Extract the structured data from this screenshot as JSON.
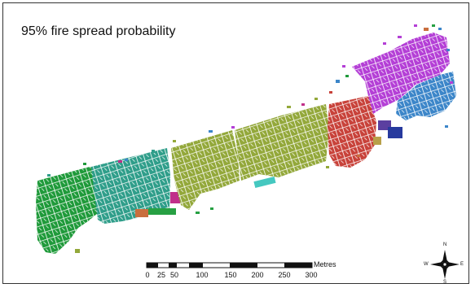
{
  "map": {
    "title": "95% fire spread probability"
  },
  "scale_bar": {
    "unit": "Metres",
    "ticks": [
      "0",
      "25",
      "50",
      "100",
      "150",
      "200",
      "250",
      "300"
    ]
  },
  "compass": {
    "north": "N",
    "south": "S",
    "east": "E",
    "west": "W"
  },
  "clusters": [
    {
      "name": "cluster-green-west",
      "color": "#1f9a3a"
    },
    {
      "name": "cluster-teal",
      "color": "#2f9e8a"
    },
    {
      "name": "cluster-olive",
      "color": "#93a83a"
    },
    {
      "name": "cluster-red",
      "color": "#c8423a"
    },
    {
      "name": "cluster-magenta",
      "color": "#b43fd6"
    },
    {
      "name": "cluster-blue",
      "color": "#3c86c9"
    }
  ]
}
